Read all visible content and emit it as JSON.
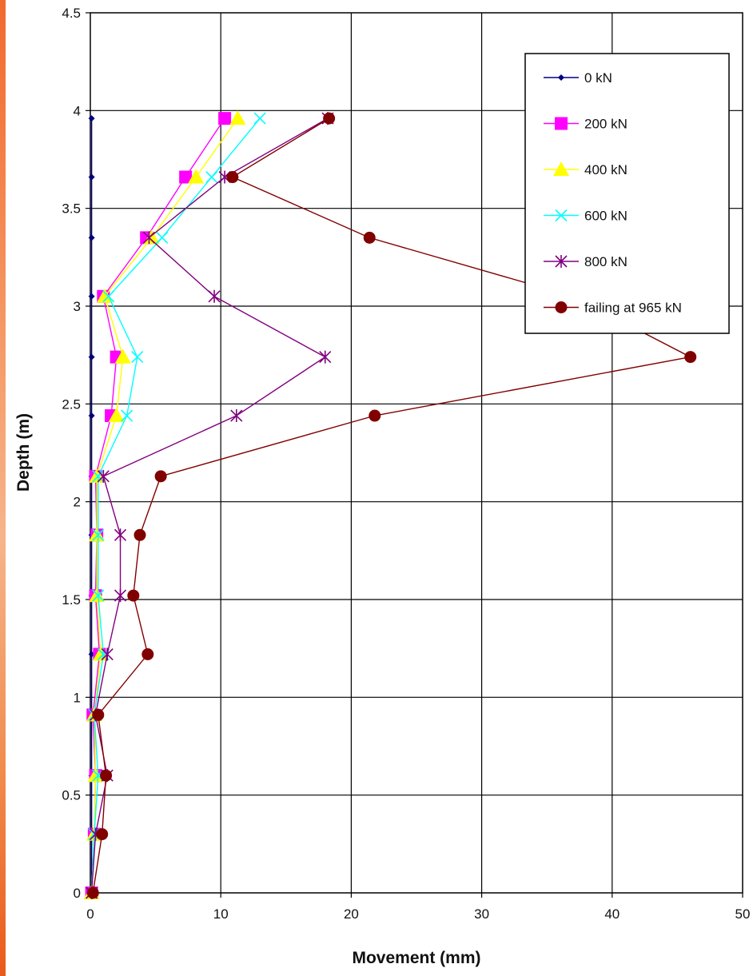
{
  "chart_data": {
    "type": "line",
    "xlabel": "Movement (mm)",
    "ylabel": "Depth (m)",
    "xlim": [
      0,
      50
    ],
    "ylim": [
      0,
      4.5
    ],
    "xticks": [
      "0",
      "10",
      "20",
      "30",
      "40",
      "50"
    ],
    "yticks": [
      "0",
      "0.5",
      "1",
      "1.5",
      "2",
      "2.5",
      "3",
      "3.5",
      "4",
      "4.5"
    ],
    "grid": true,
    "legend_position": "top-right",
    "series": [
      {
        "name": "0 kN",
        "color": "#000080",
        "marker": "diamond",
        "points": [
          [
            0.1,
            0
          ],
          [
            0.1,
            0.3
          ],
          [
            0.1,
            0.6
          ],
          [
            0.1,
            0.91
          ],
          [
            0.1,
            1.22
          ],
          [
            0.1,
            1.52
          ],
          [
            0.1,
            1.83
          ],
          [
            0.1,
            2.13
          ],
          [
            0.1,
            2.44
          ],
          [
            0.1,
            2.74
          ],
          [
            0.1,
            3.05
          ],
          [
            0.1,
            3.35
          ],
          [
            0.1,
            3.66
          ],
          [
            0.1,
            3.96
          ]
        ]
      },
      {
        "name": "200 kN",
        "color": "#ff00ff",
        "marker": "square",
        "points": [
          [
            0.1,
            0
          ],
          [
            0.3,
            0.3
          ],
          [
            0.4,
            0.6
          ],
          [
            0.2,
            0.91
          ],
          [
            0.7,
            1.22
          ],
          [
            0.4,
            1.52
          ],
          [
            0.5,
            1.83
          ],
          [
            0.4,
            2.13
          ],
          [
            1.6,
            2.44
          ],
          [
            2.0,
            2.74
          ],
          [
            1.0,
            3.05
          ],
          [
            4.3,
            3.35
          ],
          [
            7.3,
            3.66
          ],
          [
            10.3,
            3.96
          ]
        ]
      },
      {
        "name": "400 kN",
        "color": "#ffff00",
        "marker": "triangle",
        "points": [
          [
            0.1,
            0
          ],
          [
            0.3,
            0.3
          ],
          [
            0.4,
            0.6
          ],
          [
            0.3,
            0.91
          ],
          [
            0.8,
            1.22
          ],
          [
            0.5,
            1.52
          ],
          [
            0.5,
            1.83
          ],
          [
            0.5,
            2.13
          ],
          [
            2.0,
            2.44
          ],
          [
            2.5,
            2.74
          ],
          [
            1.1,
            3.05
          ],
          [
            4.7,
            3.35
          ],
          [
            8.1,
            3.66
          ],
          [
            11.3,
            3.96
          ]
        ]
      },
      {
        "name": "600 kN",
        "color": "#00ffff",
        "marker": "x",
        "points": [
          [
            0.1,
            0
          ],
          [
            0.3,
            0.3
          ],
          [
            0.6,
            0.6
          ],
          [
            0.3,
            0.91
          ],
          [
            1.0,
            1.22
          ],
          [
            0.6,
            1.52
          ],
          [
            0.6,
            1.83
          ],
          [
            0.6,
            2.13
          ],
          [
            2.8,
            2.44
          ],
          [
            3.6,
            2.74
          ],
          [
            1.4,
            3.05
          ],
          [
            5.5,
            3.35
          ],
          [
            9.3,
            3.66
          ],
          [
            13.0,
            3.96
          ]
        ]
      },
      {
        "name": "800 kN",
        "color": "#800080",
        "marker": "star",
        "points": [
          [
            0.1,
            0
          ],
          [
            0.4,
            0.3
          ],
          [
            1.3,
            0.6
          ],
          [
            0.4,
            0.91
          ],
          [
            1.3,
            1.22
          ],
          [
            2.3,
            1.52
          ],
          [
            2.3,
            1.83
          ],
          [
            1.0,
            2.13
          ],
          [
            11.2,
            2.44
          ],
          [
            18.0,
            2.74
          ],
          [
            9.5,
            3.05
          ],
          [
            4.5,
            3.35
          ],
          [
            10.3,
            3.66
          ],
          [
            18.2,
            3.96
          ]
        ]
      },
      {
        "name": "failing at 965 kN",
        "color": "#800000",
        "marker": "circle",
        "points": [
          [
            0.2,
            0
          ],
          [
            0.9,
            0.3
          ],
          [
            1.2,
            0.6
          ],
          [
            0.6,
            0.91
          ],
          [
            4.4,
            1.22
          ],
          [
            3.3,
            1.52
          ],
          [
            3.8,
            1.83
          ],
          [
            5.4,
            2.13
          ],
          [
            21.8,
            2.44
          ],
          [
            46.0,
            2.74
          ],
          [
            37.0,
            3.05
          ],
          [
            21.4,
            3.35
          ],
          [
            10.9,
            3.66
          ],
          [
            18.3,
            3.96
          ]
        ]
      }
    ]
  }
}
